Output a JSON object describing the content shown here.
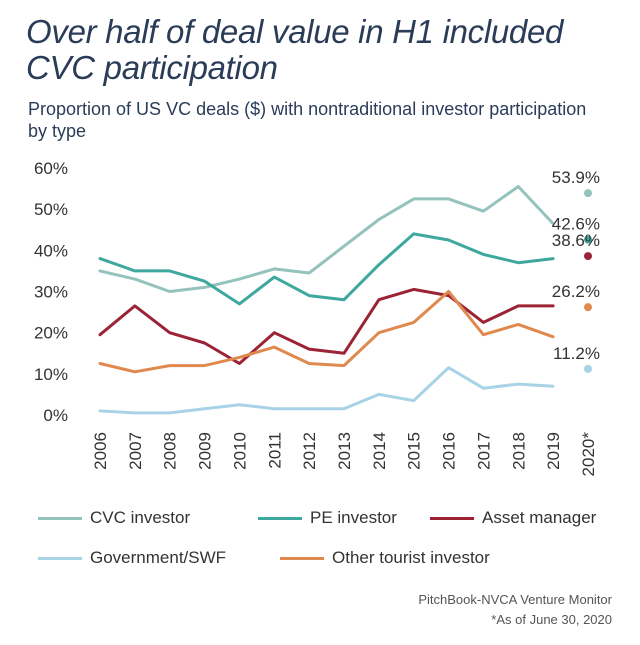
{
  "header": {
    "title": "Over half of deal value in H1 included CVC participation",
    "subtitle": "Proportion of US VC deals ($) with nontraditional investor participation by type"
  },
  "footer": {
    "source": "PitchBook-NVCA Venture Monitor",
    "note": "*As of June 30, 2020"
  },
  "chart_data": {
    "type": "line",
    "title": "Over half of deal value in H1 included CVC participation",
    "subtitle": "Proportion of US VC deals ($) with nontraditional investor participation by type",
    "xlabel": "",
    "ylabel": "",
    "ylim": [
      0,
      60
    ],
    "yticks": [
      0,
      10,
      20,
      30,
      40,
      50,
      60
    ],
    "ytick_labels": [
      "0%",
      "10%",
      "20%",
      "30%",
      "40%",
      "50%",
      "60%"
    ],
    "grid": false,
    "legend_position": "bottom",
    "categories": [
      "2006",
      "2007",
      "2008",
      "2009",
      "2010",
      "2011",
      "2012",
      "2013",
      "2014",
      "2015",
      "2016",
      "2017",
      "2018",
      "2019",
      "2020*"
    ],
    "series": [
      {
        "name": "CVC investor",
        "color": "#93c3bc",
        "values": [
          35,
          33,
          30,
          31,
          33,
          35.5,
          34.5,
          41,
          47.5,
          52.5,
          52.5,
          49.5,
          55.5,
          46.5,
          53.9
        ],
        "end_label": "53.9%"
      },
      {
        "name": "PE investor",
        "color": "#3ea79e",
        "values": [
          38,
          35,
          35,
          32.5,
          27,
          33.5,
          29,
          28,
          36.5,
          44,
          42.5,
          39,
          37,
          38,
          42.6
        ],
        "end_label": "42.6%"
      },
      {
        "name": "Asset manager",
        "color": "#9b2335",
        "values": [
          19.5,
          26.5,
          20,
          17.5,
          12.5,
          20,
          16,
          15,
          28,
          30.5,
          29,
          22.5,
          26.5,
          26.5,
          38.6
        ],
        "end_label": "38.6%"
      },
      {
        "name": "Government/SWF",
        "color": "#a8d3e6",
        "values": [
          1,
          0.5,
          0.5,
          1.5,
          2.5,
          1.5,
          1.5,
          1.5,
          5,
          3.5,
          11.5,
          6.5,
          7.5,
          7,
          11.2
        ],
        "end_label": "11.2%"
      },
      {
        "name": "Other tourist investor",
        "color": "#e0894f",
        "values": [
          12.5,
          10.5,
          12,
          12,
          14,
          16.5,
          12.5,
          12,
          20,
          22.5,
          30,
          19.5,
          22,
          19,
          26.2
        ],
        "end_label": "26.2%"
      }
    ],
    "note": "2020* values are shown as separate end points with labels"
  }
}
